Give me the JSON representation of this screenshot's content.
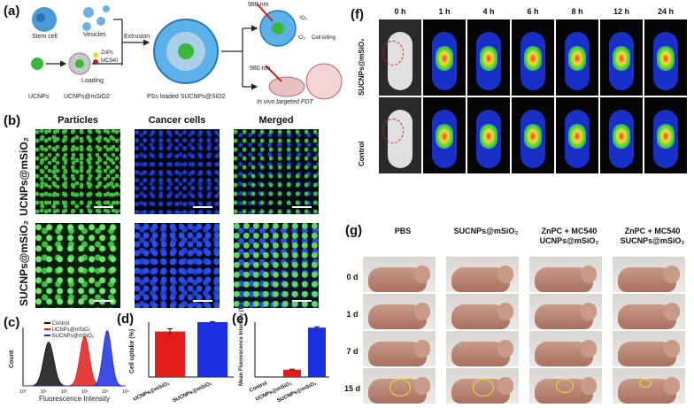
{
  "panels": {
    "a": "(a)",
    "b": "(b)",
    "c": "(c)",
    "d": "(d)",
    "e": "(e)",
    "f": "(f)",
    "g": "(g)"
  },
  "schematic": {
    "stem_cell": "Stem cell",
    "vesicles": "Vesicles",
    "extrusion": "Extrusion",
    "loading": "Loading",
    "ucnps": "UCNPs",
    "ucnps_msio2": "UCNPs@mSiO2",
    "znpc": "ZnPc",
    "mc540": "MC540",
    "ps_loaded": "PSs loaded SUCNPs@SiO2",
    "nm980_top": "980 nm",
    "nm980_bottom": "980 nm",
    "o2_top": "¹O₂",
    "o2_bottom": "¹O₂",
    "cell_killing": "Cell killing",
    "in_vivo": "In vivo targeted PDT"
  },
  "microscopy": {
    "col_headers": [
      "Particles",
      "Cancer cells",
      "Merged"
    ],
    "row_labels": [
      "UCNPs@mSiO₂",
      "SUCNPs@mSiO₂"
    ]
  },
  "chart_data": [
    {
      "type": "line",
      "panel": "c",
      "xlabel": "Fluorescence Intensity",
      "ylabel": "Count",
      "x_ticks": [
        "10⁰",
        "10¹",
        "10²",
        "10³",
        "10⁴",
        "10⁵"
      ],
      "series": [
        {
          "name": "Control",
          "color": "#111111"
        },
        {
          "name": "UCNPs@mSiO₂",
          "color": "#e21b1b"
        },
        {
          "name": "SUCNPs@mSiO₂",
          "color": "#1b2fe2"
        }
      ]
    },
    {
      "type": "bar",
      "panel": "d",
      "ylabel": "Cell uptake (%)",
      "categories": [
        "UCNPs@mSiO₂",
        "SUCNPs@mSiO₂"
      ],
      "values": [
        83,
        100
      ],
      "errors": [
        5,
        1
      ],
      "colors": [
        "#e21b1b",
        "#1b2fe2"
      ],
      "ylim": [
        0,
        100
      ]
    },
    {
      "type": "bar",
      "panel": "e",
      "ylabel": "Mean Fluorescence Intensity (10⁴)",
      "categories": [
        "Control",
        "UCNPs@mSiO₂",
        "SUCNPs@mSiO₂"
      ],
      "values": [
        0,
        0.8,
        5.4
      ],
      "errors": [
        0,
        0.05,
        0.1
      ],
      "colors": [
        "#111111",
        "#e21b1b",
        "#1b2fe2"
      ],
      "ylim": [
        0,
        6
      ]
    }
  ],
  "imaging": {
    "timepoints": [
      "0 h",
      "1 h",
      "4 h",
      "6 h",
      "8 h",
      "12 h",
      "24 h"
    ],
    "rows": [
      "SUCNPs@mSiO₂",
      "Control"
    ]
  },
  "treatment": {
    "headers": [
      "PBS",
      "SUCNPs@mSiO₂",
      "ZnPC + MC540\nUCNPs@mSiO₂",
      "ZnPC + MC540\nSUCNPs@mSiO₂"
    ],
    "days": [
      "0 d",
      "1 d",
      "7 d",
      "15 d"
    ]
  }
}
